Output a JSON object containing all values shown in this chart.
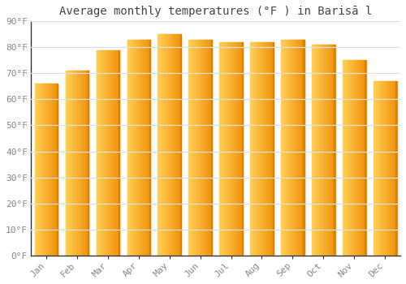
{
  "title": "Average monthly temperatures (°F ) in Barisā l",
  "months": [
    "Jan",
    "Feb",
    "Mar",
    "Apr",
    "May",
    "Jun",
    "Jul",
    "Aug",
    "Sep",
    "Oct",
    "Nov",
    "Dec"
  ],
  "values": [
    66,
    71,
    79,
    83,
    85,
    83,
    82,
    82,
    83,
    81,
    75,
    67
  ],
  "bar_color_left": "#FFD055",
  "bar_color_right": "#F0920A",
  "ylim": [
    0,
    90
  ],
  "yticks": [
    0,
    10,
    20,
    30,
    40,
    50,
    60,
    70,
    80,
    90
  ],
  "ylabel_suffix": "°F",
  "background_color": "#FFFFFF",
  "grid_color": "#E0E0E0",
  "title_fontsize": 10,
  "tick_fontsize": 8,
  "font_family": "monospace"
}
